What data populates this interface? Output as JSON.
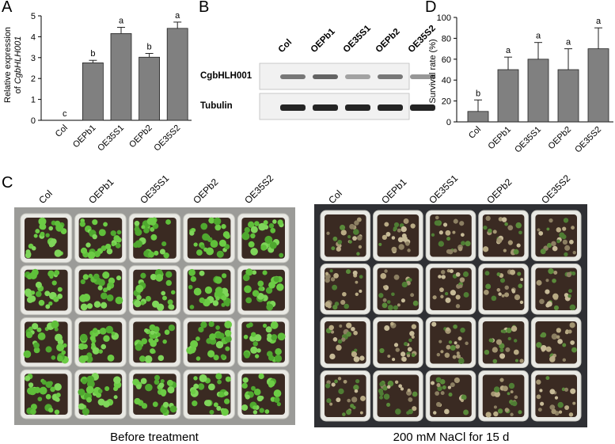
{
  "panels": {
    "a_letter": "A",
    "b_letter": "B",
    "c_letter": "C",
    "d_letter": "D"
  },
  "chart_data": [
    {
      "type": "bar",
      "panel": "A",
      "categories": [
        "Col",
        "OEPb1",
        "OE35S1",
        "OEPb2",
        "OE35S2"
      ],
      "values": [
        0.0,
        2.75,
        4.15,
        3.02,
        4.4
      ],
      "errors": [
        0.0,
        0.12,
        0.3,
        0.18,
        0.3
      ],
      "significance": [
        "c",
        "b",
        "a",
        "b",
        "a"
      ],
      "ylabel_line1": "Relative expression",
      "ylabel_line2_prefix": "of ",
      "ylabel_line2_italic": "CgbHLH001",
      "ylim": [
        0,
        5
      ],
      "yticks": [
        "0",
        "1",
        "2",
        "3",
        "4",
        "5"
      ],
      "bar_color": "#808080"
    },
    {
      "type": "bar",
      "panel": "D",
      "categories": [
        "Col",
        "OEPb1",
        "OE35S1",
        "OEPb2",
        "OE35S2"
      ],
      "values": [
        10,
        50,
        60,
        50,
        70
      ],
      "errors": [
        11,
        12,
        16,
        20,
        20
      ],
      "significance": [
        "b",
        "a",
        "a",
        "a",
        "a"
      ],
      "ylabel": "Survival rate (%)",
      "ylim": [
        0,
        100
      ],
      "yticks": [
        "0",
        "20",
        "40",
        "60",
        "80",
        "100"
      ],
      "bar_color": "#808080"
    }
  ],
  "blot": {
    "lanes": [
      "Col",
      "OEPb1",
      "OE35S1",
      "OEPb2",
      "OE35S2"
    ],
    "rows": [
      {
        "label": "CgbHLH001",
        "intensity": [
          0.55,
          0.65,
          0.35,
          0.55,
          0.4
        ]
      },
      {
        "label": "Tubulin",
        "intensity": [
          0.95,
          0.95,
          0.95,
          0.95,
          0.95
        ]
      }
    ]
  },
  "photos": {
    "columns": [
      "Col",
      "OEPb1",
      "OE35S1",
      "OEPb2",
      "OE35S2"
    ],
    "left_caption": "Before treatment",
    "right_caption": "200 mM NaCl for 15 d"
  }
}
